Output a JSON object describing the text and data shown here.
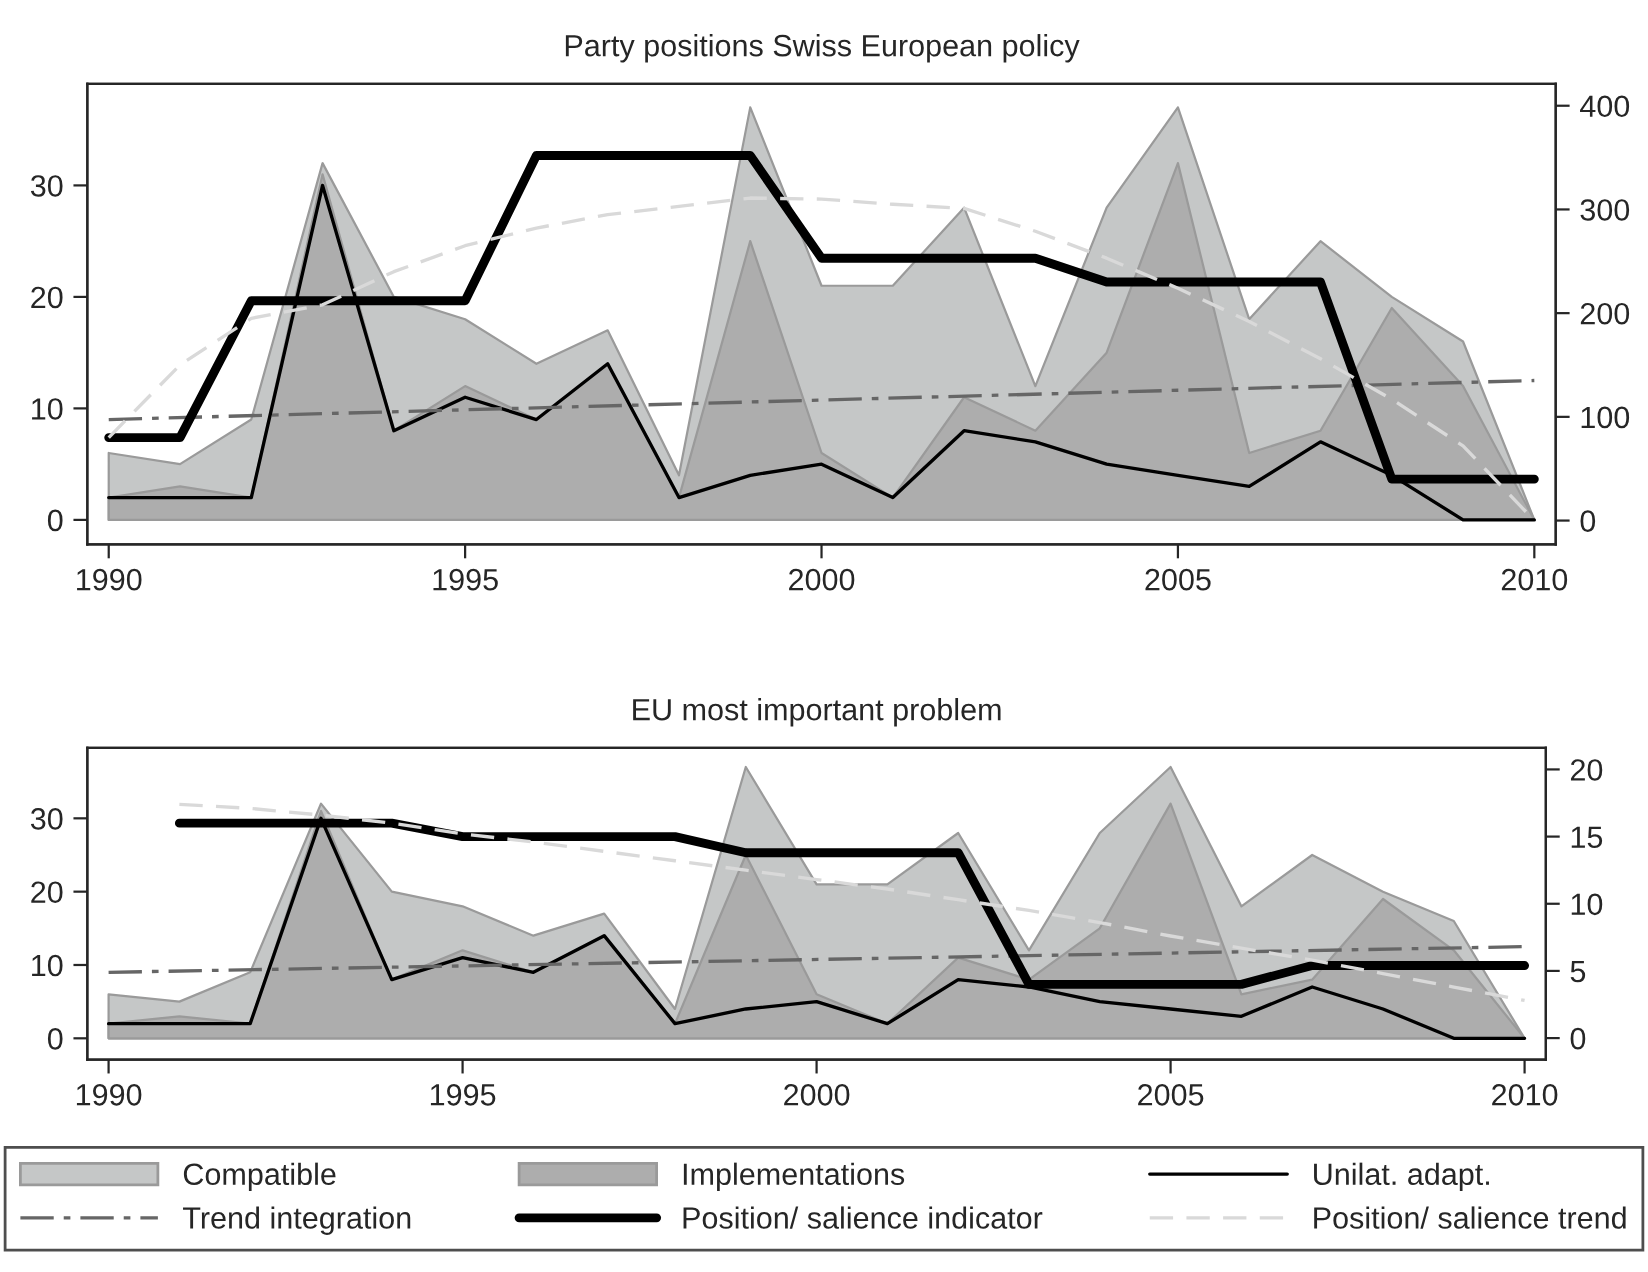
{
  "chart_data": [
    {
      "type": "area",
      "title": "Party positions Swiss European policy",
      "x": [
        1990,
        1991,
        1992,
        1993,
        1994,
        1995,
        1996,
        1997,
        1998,
        1999,
        2000,
        2001,
        2002,
        2003,
        2004,
        2005,
        2006,
        2007,
        2008,
        2009,
        2010
      ],
      "xlim": [
        1989.7,
        2010.3
      ],
      "xticks": [
        1990,
        1995,
        2000,
        2005,
        2010
      ],
      "ylim": [
        -2.2,
        39.1
      ],
      "yticks": [
        0,
        10,
        20,
        30
      ],
      "y2lim": [
        -23,
        421
      ],
      "y2ticks": [
        0,
        100,
        200,
        300,
        400
      ],
      "grid": false,
      "marker": "none",
      "legend": "bottom",
      "series": [
        {
          "name": "Compatible",
          "type": "area",
          "color": "#c5c7c7",
          "values": [
            6,
            5,
            9,
            32,
            20,
            18,
            14,
            17,
            4,
            37,
            21,
            21,
            28,
            12,
            28,
            37,
            18,
            25,
            20,
            16,
            0
          ]
        },
        {
          "name": "Implementations",
          "type": "area",
          "color": "#adadad",
          "values": [
            2,
            3,
            2,
            31,
            8,
            12,
            9,
            14,
            2,
            25,
            6,
            2,
            11,
            8,
            15,
            32,
            6,
            8,
            19,
            12,
            0
          ]
        },
        {
          "name": "Unilat. adapt.",
          "type": "line",
          "color": "#000000",
          "line_style": "solid",
          "values": [
            2,
            2,
            2,
            30,
            8,
            11,
            9,
            14,
            2,
            4,
            5,
            2,
            8,
            7,
            5,
            4,
            3,
            7,
            4,
            0,
            0
          ]
        },
        {
          "name": "Trend integration",
          "type": "line",
          "color": "#666666",
          "line_style": "dashdot",
          "x": [
            1990,
            2010
          ],
          "values": [
            9,
            12.5
          ]
        },
        {
          "name": "Position/ salience indicator",
          "type": "line",
          "axis": "y2",
          "color": "#000000",
          "line_style": "solid",
          "values": [
            80,
            80,
            212,
            212,
            212,
            212,
            352,
            352,
            352,
            352,
            253,
            253,
            253,
            253,
            230,
            230,
            230,
            230,
            40,
            40,
            40
          ]
        },
        {
          "name": "Position/ salience trend",
          "type": "line",
          "axis": "y2",
          "color": "#d9d9d9",
          "line_style": "dashed",
          "values": [
            80,
            150,
            195,
            208,
            240,
            265,
            282,
            295,
            303,
            311,
            310,
            305,
            301,
            279,
            253,
            224,
            192,
            156,
            117,
            72,
            0
          ]
        }
      ]
    },
    {
      "type": "area",
      "title": "EU most important problem",
      "x": [
        1990,
        1991,
        1992,
        1993,
        1994,
        1995,
        1996,
        1997,
        1998,
        1999,
        2000,
        2001,
        2002,
        2003,
        2004,
        2005,
        2006,
        2007,
        2008,
        2009,
        2010
      ],
      "xlim": [
        1989.7,
        2010.3
      ],
      "xticks": [
        1990,
        1995,
        2000,
        2005,
        2010
      ],
      "ylim": [
        -2.9,
        39.6
      ],
      "yticks": [
        0,
        10,
        20,
        30
      ],
      "y2lim": [
        -1.6,
        21.6
      ],
      "y2ticks": [
        0,
        5,
        10,
        15,
        20
      ],
      "grid": false,
      "marker": "none",
      "series": [
        {
          "type": "area",
          "color": "#c5c7c7",
          "values": [
            6,
            5,
            9,
            32,
            20,
            18,
            14,
            17,
            4,
            37,
            21,
            21,
            28,
            12,
            28,
            37,
            18,
            25,
            20,
            16,
            0
          ]
        },
        {
          "type": "area",
          "color": "#adadad",
          "values": [
            2,
            3,
            2,
            31,
            8,
            12,
            9,
            14,
            2,
            25,
            6,
            2,
            11,
            8,
            15,
            32,
            6,
            8,
            19,
            12,
            0
          ]
        },
        {
          "type": "line",
          "color": "#000000",
          "line_style": "solid",
          "values": [
            2,
            2,
            2,
            30,
            8,
            11,
            9,
            14,
            2,
            4,
            5,
            2,
            8,
            7,
            5,
            4,
            3,
            7,
            4,
            0,
            0
          ]
        },
        {
          "type": "line",
          "color": "#666666",
          "line_style": "dashdot",
          "x": [
            1990,
            2010
          ],
          "values": [
            9,
            12.5
          ]
        },
        {
          "type": "line",
          "axis": "y2",
          "color": "#000000",
          "line_style": "solid",
          "x": [
            1991,
            1992,
            1993,
            1994,
            1995,
            1996,
            1997,
            1998,
            1999,
            2000,
            2001,
            2002,
            2003,
            2004,
            2005,
            2006,
            2007,
            2008,
            2009,
            2010
          ],
          "values": [
            16,
            16,
            16,
            16,
            15,
            15,
            15,
            15,
            13.8,
            13.8,
            13.8,
            13.8,
            4,
            4,
            4,
            4,
            5.4,
            5.4,
            5.4,
            5.4
          ]
        },
        {
          "type": "line",
          "axis": "y2",
          "color": "#d9d9d9",
          "line_style": "dashed",
          "x": [
            1991,
            1992,
            1993,
            1994,
            1995,
            1996,
            1997,
            1998,
            1999,
            2000,
            2001,
            2002,
            2003,
            2004,
            2005,
            2006,
            2007,
            2008,
            2009,
            2010
          ],
          "values": [
            17.4,
            17.1,
            16.6,
            16.0,
            15.2,
            14.6,
            13.9,
            13.2,
            12.5,
            11.8,
            11.1,
            10.3,
            9.5,
            8.6,
            7.6,
            6.7,
            5.8,
            4.8,
            3.8,
            2.8
          ]
        }
      ]
    }
  ]
}
